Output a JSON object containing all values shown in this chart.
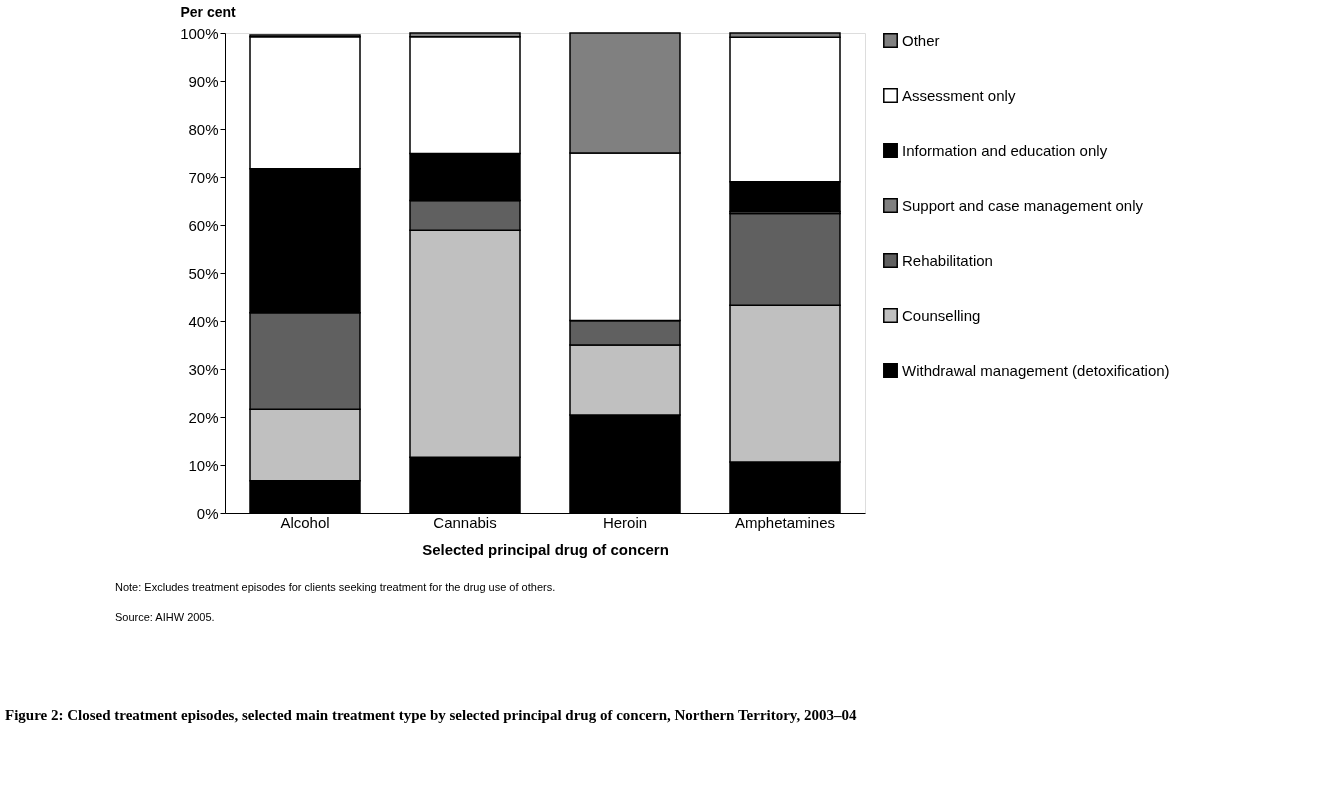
{
  "chart_data": {
    "type": "bar",
    "stacked": true,
    "title": "Figure 2: Closed treatment episodes, selected main treatment type by selected principal drug of concern, Northern Territory, 2003–04",
    "xlabel": "Selected principal drug of concern",
    "ylabel": "Per cent",
    "categories": [
      "Alcohol",
      "Cannabis",
      "Heroin",
      "Amphetamines"
    ],
    "series": [
      {
        "name": "Withdrawal management (detoxification)",
        "color": "#000000",
        "values": [
          6.7,
          11.6,
          20.4,
          10.6
        ]
      },
      {
        "name": "Counselling",
        "color": "#c0c0c0",
        "values": [
          14.9,
          47.3,
          14.6,
          32.7
        ]
      },
      {
        "name": "Rehabilitation",
        "color": "#606060",
        "values": [
          20.1,
          6.2,
          5.1,
          19.1
        ]
      },
      {
        "name": "Support and case management only",
        "color": "#808080",
        "values": [
          null,
          0,
          0,
          0.4
        ]
      },
      {
        "name": "Information and education only",
        "color": "#000000",
        "values": [
          30,
          9.8,
          0,
          6.2
        ]
      },
      {
        "name": "Assessment only",
        "color": "#ffffff",
        "values": [
          27.5,
          24.3,
          34.9,
          30.1
        ]
      },
      {
        "name": "Other",
        "color": "#808080",
        "values": [
          0.4,
          0.8,
          25.0,
          0.9
        ]
      }
    ],
    "ylim": [
      0,
      100
    ],
    "yticks": [
      {
        "value": 0,
        "label": "0%"
      },
      {
        "value": 10,
        "label": "10%"
      },
      {
        "value": 20,
        "label": "20%"
      },
      {
        "value": 30,
        "label": "30%"
      },
      {
        "value": 40,
        "label": "40%"
      },
      {
        "value": 50,
        "label": "50%"
      },
      {
        "value": 60,
        "label": "60%"
      },
      {
        "value": 70,
        "label": "70%"
      },
      {
        "value": 80,
        "label": "80%"
      },
      {
        "value": 90,
        "label": "90%"
      },
      {
        "value": 100,
        "label": "100%"
      }
    ],
    "grid": false,
    "legend": "right",
    "annotations": [
      "Note:   Excludes treatment episodes for clients seeking treatment for the drug use of others.",
      "Source: AIHW 2005."
    ]
  }
}
